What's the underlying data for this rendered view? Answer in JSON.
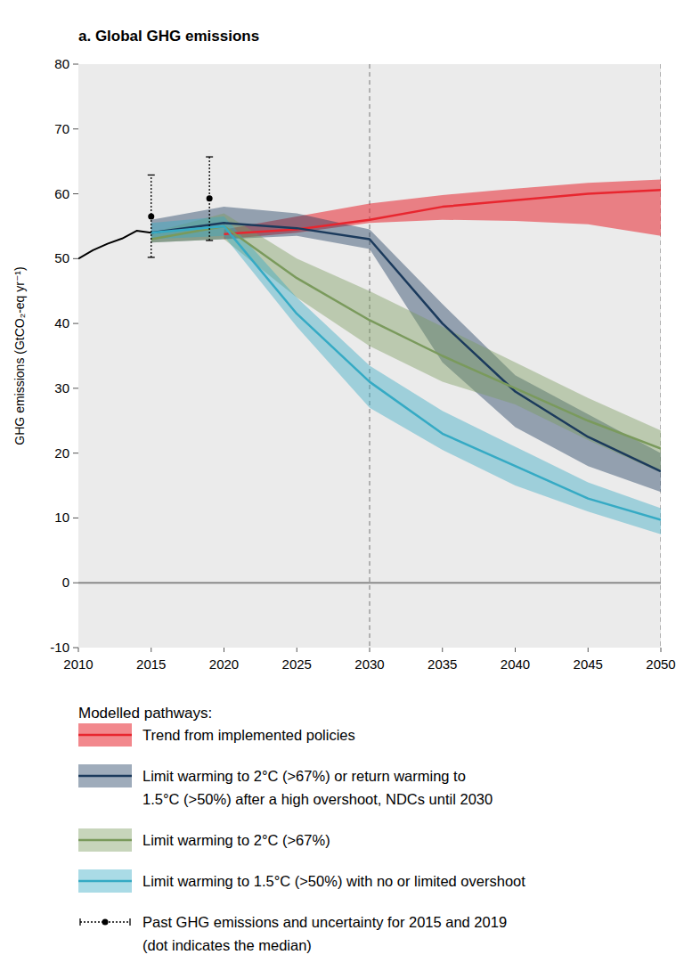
{
  "chart_data": {
    "type": "line",
    "title": "a. Global GHG emissions",
    "y_label": "GHG emissions (GtCO₂-eq yr⁻¹)",
    "xlim": [
      2010,
      2050
    ],
    "xticks": [
      2010,
      2015,
      2020,
      2025,
      2030,
      2035,
      2040,
      2045,
      2050
    ],
    "ylim": [
      -10,
      80
    ],
    "yticks": [
      -10,
      0,
      10,
      20,
      30,
      40,
      50,
      60,
      70,
      80
    ],
    "grid": false,
    "reference_lines_x": [
      2030,
      2050
    ],
    "reference_lines_y": [
      0
    ],
    "legend_title": "Modelled pathways:",
    "series": [
      {
        "color": "#000000",
        "x": [
          2010,
          2011,
          2012,
          2013,
          2014,
          2015
        ],
        "values": [
          50,
          51.3,
          52.3,
          53.1,
          54.3,
          54
        ]
      },
      {
        "name": "Trend from implemented policies",
        "color": "#e8262f",
        "x": [
          2020,
          2025,
          2030,
          2035,
          2040,
          2045,
          2050
        ],
        "values": [
          53.8,
          54.5,
          56,
          58,
          59,
          60,
          60.6
        ],
        "lower": [
          53,
          54,
          55.5,
          56,
          55.8,
          55.3,
          53.5
        ],
        "upper": [
          54.5,
          56.5,
          58.5,
          59.8,
          60.8,
          61.7,
          62.2
        ]
      },
      {
        "name": "Limit warming to 2°C (>67%) or return warming to\n1.5°C (>50%) after a high overshoot, NDCs until 2030",
        "color": "#1b3a5c",
        "x": [
          2015,
          2020,
          2025,
          2030,
          2035,
          2040,
          2045,
          2050
        ],
        "values": [
          54,
          55.5,
          54.7,
          53,
          40,
          29.5,
          22.5,
          17.2
        ],
        "lower": [
          52.5,
          53,
          53.5,
          51.5,
          34,
          24,
          18,
          14
        ],
        "upper": [
          56,
          58,
          57,
          54.5,
          43,
          32,
          26,
          20
        ]
      },
      {
        "name": "Limit warming to 2°C (>67%)",
        "color": "#7a9a5c",
        "x": [
          2015,
          2020,
          2025,
          2030,
          2035,
          2040,
          2045,
          2050
        ],
        "values": [
          53,
          55,
          47,
          40.5,
          35,
          30,
          25,
          20.7
        ],
        "lower": [
          52.5,
          53,
          44,
          36.5,
          31,
          27.5,
          22,
          17
        ],
        "upper": [
          54,
          57,
          50,
          45,
          39.5,
          34,
          28.5,
          23.5
        ]
      },
      {
        "name": "Limit warming to 1.5°C (>50%) with no or limited overshoot",
        "color": "#35aac4",
        "x": [
          2015,
          2020,
          2025,
          2030,
          2035,
          2040,
          2045,
          2050
        ],
        "values": [
          54,
          55,
          41.5,
          31,
          23,
          18,
          13,
          9.7
        ],
        "lower": [
          53,
          53.5,
          39.5,
          27,
          20.5,
          15,
          11,
          7.5
        ],
        "upper": [
          55.5,
          56.5,
          44,
          33.5,
          26.5,
          21,
          15.5,
          11.5
        ]
      }
    ],
    "error_bars": {
      "name": "Past GHG emissions and uncertainty for 2015 and 2019\n(dot indicates the median)",
      "color": "#000000",
      "x": [
        2015,
        2019
      ],
      "values": [
        56.5,
        59.3
      ],
      "lower": [
        50.2,
        52.8
      ],
      "upper": [
        62.9,
        65.7
      ]
    }
  }
}
